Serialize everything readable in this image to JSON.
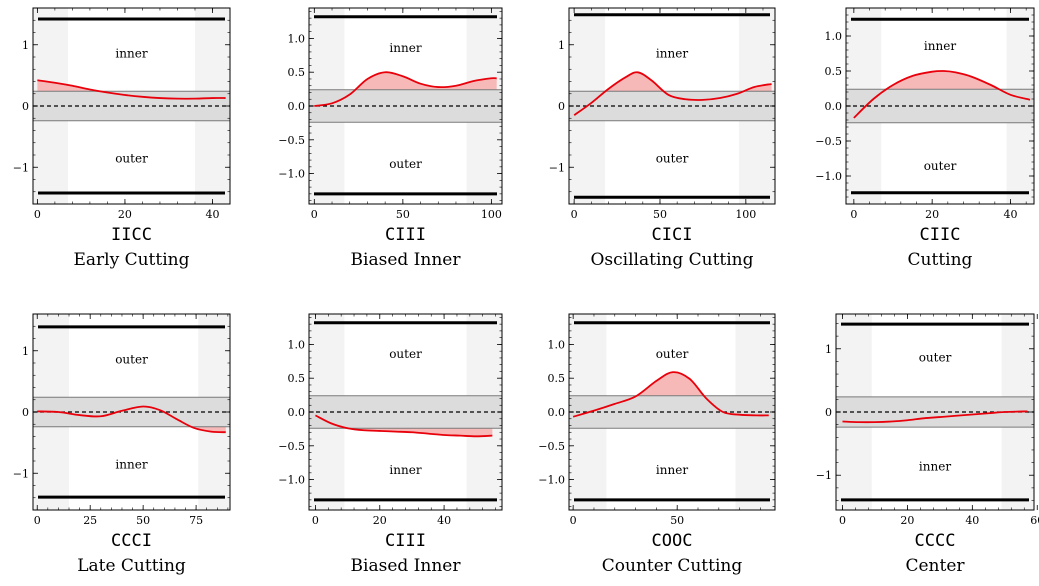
{
  "chart_data": [
    {
      "type": "line",
      "code": "IICC",
      "title": "Early Cutting",
      "xlim": [
        -1,
        44
      ],
      "ylim": [
        -1.6,
        1.6
      ],
      "xticks": [
        0,
        20,
        40
      ],
      "yticks": [
        -1,
        0,
        1
      ],
      "xtick_labels": [
        "0",
        "20",
        "40"
      ],
      "ytick_labels": [
        "−1",
        "0",
        "1"
      ],
      "wall_top": 1.42,
      "wall_bottom": -1.42,
      "center_band": [
        -0.24,
        0.24
      ],
      "shade_left": 7,
      "shade_right": 36,
      "top_label": "inner",
      "bottom_label": "outer",
      "x": [
        0,
        4,
        8,
        12,
        16,
        20,
        24,
        28,
        32,
        36,
        40,
        43
      ],
      "y": [
        0.42,
        0.38,
        0.33,
        0.27,
        0.22,
        0.18,
        0.15,
        0.13,
        0.12,
        0.12,
        0.13,
        0.13
      ]
    },
    {
      "type": "line",
      "code": "CIII",
      "title": "Biased Inner",
      "xlim": [
        -3,
        106
      ],
      "ylim": [
        -1.45,
        1.45
      ],
      "xticks": [
        0,
        50,
        100
      ],
      "yticks": [
        -1.0,
        -0.5,
        0.0,
        0.5,
        1.0
      ],
      "xtick_labels": [
        "0",
        "50",
        "100"
      ],
      "ytick_labels": [
        "−1.0",
        "−0.5",
        "0.0",
        "0.5",
        "1.0"
      ],
      "wall_top": 1.32,
      "wall_bottom": -1.3,
      "center_band": [
        -0.24,
        0.24
      ],
      "shade_left": 17,
      "shade_right": 86,
      "top_label": "inner",
      "bottom_label": "outer",
      "x": [
        0,
        10,
        20,
        30,
        40,
        50,
        60,
        70,
        80,
        90,
        100,
        103
      ],
      "y": [
        0.0,
        0.04,
        0.17,
        0.4,
        0.5,
        0.44,
        0.33,
        0.28,
        0.3,
        0.37,
        0.41,
        0.41
      ]
    },
    {
      "type": "line",
      "code": "CICI",
      "title": "Oscillating Cutting",
      "xlim": [
        -3,
        117
      ],
      "ylim": [
        -1.6,
        1.6
      ],
      "xticks": [
        0,
        50,
        100
      ],
      "yticks": [
        -1,
        0,
        1
      ],
      "xtick_labels": [
        "0",
        "50",
        "100"
      ],
      "ytick_labels": [
        "−1",
        "0",
        "1"
      ],
      "wall_top": 1.49,
      "wall_bottom": -1.49,
      "center_band": [
        -0.24,
        0.24
      ],
      "shade_left": 18,
      "shade_right": 96,
      "top_label": "inner",
      "bottom_label": "outer",
      "x": [
        0,
        10,
        20,
        30,
        37,
        45,
        55,
        65,
        75,
        85,
        95,
        105,
        115
      ],
      "y": [
        -0.15,
        0.05,
        0.28,
        0.47,
        0.55,
        0.42,
        0.18,
        0.11,
        0.1,
        0.13,
        0.2,
        0.31,
        0.36
      ]
    },
    {
      "type": "line",
      "code": "CIIC",
      "title": "Cutting",
      "xlim": [
        -2,
        46
      ],
      "ylim": [
        -1.4,
        1.4
      ],
      "xticks": [
        0,
        20,
        40
      ],
      "yticks": [
        -1.0,
        -0.5,
        0.0,
        0.5,
        1.0
      ],
      "xtick_labels": [
        "0",
        "20",
        "40"
      ],
      "ytick_labels": [
        "−1.0",
        "−0.5",
        "0.0",
        "0.5",
        "1.0"
      ],
      "wall_top": 1.24,
      "wall_bottom": -1.24,
      "center_band": [
        -0.24,
        0.24
      ],
      "shade_left": 7,
      "shade_right": 39,
      "top_label": "inner",
      "bottom_label": "outer",
      "x": [
        0,
        5,
        10,
        15,
        20,
        23,
        26,
        30,
        35,
        40,
        45
      ],
      "y": [
        -0.17,
        0.1,
        0.3,
        0.43,
        0.49,
        0.5,
        0.48,
        0.42,
        0.3,
        0.16,
        0.09
      ]
    },
    {
      "type": "line",
      "code": "CCCI",
      "title": "Late Cutting",
      "xlim": [
        -2,
        91
      ],
      "ylim": [
        -1.6,
        1.6
      ],
      "xticks": [
        0,
        25,
        50,
        75
      ],
      "yticks": [
        -1,
        0,
        1
      ],
      "xtick_labels": [
        "0",
        "25",
        "50",
        "75"
      ],
      "ytick_labels": [
        "−1",
        "0",
        "1"
      ],
      "wall_top": 1.39,
      "wall_bottom": -1.39,
      "center_band": [
        -0.24,
        0.24
      ],
      "shade_left": 15,
      "shade_right": 76,
      "top_label": "outer",
      "bottom_label": "inner",
      "x": [
        0,
        10,
        20,
        30,
        40,
        50,
        58,
        66,
        74,
        82,
        89
      ],
      "y": [
        0.01,
        0.0,
        -0.05,
        -0.07,
        0.02,
        0.09,
        0.03,
        -0.12,
        -0.26,
        -0.32,
        -0.33
      ]
    },
    {
      "type": "line",
      "code": "CIII",
      "title": "Biased Inner",
      "xlim": [
        -2,
        58
      ],
      "ylim": [
        -1.45,
        1.45
      ],
      "xticks": [
        0,
        20,
        40
      ],
      "yticks": [
        -1.0,
        -0.5,
        0.0,
        0.5,
        1.0
      ],
      "xtick_labels": [
        "0",
        "20",
        "40"
      ],
      "ytick_labels": [
        "−1.0",
        "−0.5",
        "0.0",
        "0.5",
        "1.0"
      ],
      "wall_top": 1.32,
      "wall_bottom": -1.3,
      "center_band": [
        -0.24,
        0.24
      ],
      "shade_left": 9,
      "shade_right": 47,
      "top_label": "outer",
      "bottom_label": "inner",
      "x": [
        0,
        5,
        10,
        15,
        20,
        25,
        30,
        35,
        40,
        45,
        50,
        55
      ],
      "y": [
        -0.05,
        -0.17,
        -0.24,
        -0.27,
        -0.28,
        -0.29,
        -0.3,
        -0.32,
        -0.34,
        -0.35,
        -0.36,
        -0.35
      ]
    },
    {
      "type": "line",
      "code": "COOC",
      "title": "Counter Cutting",
      "xlim": [
        -2,
        97
      ],
      "ylim": [
        -1.45,
        1.45
      ],
      "xticks": [
        0,
        50
      ],
      "yticks": [
        -1.0,
        -0.5,
        0.0,
        0.5,
        1.0
      ],
      "xtick_labels": [
        "0",
        "50"
      ],
      "ytick_labels": [
        "−1.0",
        "−0.5",
        "0.0",
        "0.5",
        "1.0"
      ],
      "wall_top": 1.32,
      "wall_bottom": -1.3,
      "center_band": [
        -0.24,
        0.24
      ],
      "shade_left": 16,
      "shade_right": 78,
      "top_label": "outer",
      "bottom_label": "inner",
      "x": [
        0,
        10,
        20,
        30,
        40,
        48,
        56,
        64,
        72,
        80,
        88,
        94
      ],
      "y": [
        -0.07,
        0.02,
        0.12,
        0.23,
        0.46,
        0.59,
        0.49,
        0.2,
        0.0,
        -0.04,
        -0.05,
        -0.05
      ]
    },
    {
      "type": "line",
      "code": "CCCC",
      "title": "Center",
      "xlim": [
        -2,
        59
      ],
      "ylim": [
        -1.55,
        1.55
      ],
      "xticks": [
        0,
        20,
        40,
        60
      ],
      "yticks": [
        -1,
        0,
        1
      ],
      "xtick_labels": [
        "0",
        "20",
        "40",
        "60"
      ],
      "ytick_labels": [
        "−1",
        "0",
        "1"
      ],
      "wall_top": 1.39,
      "wall_bottom": -1.39,
      "center_band": [
        -0.24,
        0.24
      ],
      "shade_left": 9,
      "shade_right": 49,
      "top_label": "outer",
      "bottom_label": "inner",
      "x": [
        0,
        5,
        10,
        15,
        20,
        25,
        30,
        35,
        40,
        45,
        50,
        57
      ],
      "y": [
        -0.15,
        -0.16,
        -0.16,
        -0.15,
        -0.13,
        -0.1,
        -0.08,
        -0.06,
        -0.04,
        -0.02,
        0.0,
        0.01
      ]
    }
  ],
  "colors": {
    "trajectory": "#e8000b",
    "deviation_fill": "#f7b8b8",
    "center_band": "#dcdcdc",
    "band_edge": "#7a7a7a",
    "side_shade": "#f3f3f3",
    "wall": "#000000",
    "centerline": "#000000"
  }
}
